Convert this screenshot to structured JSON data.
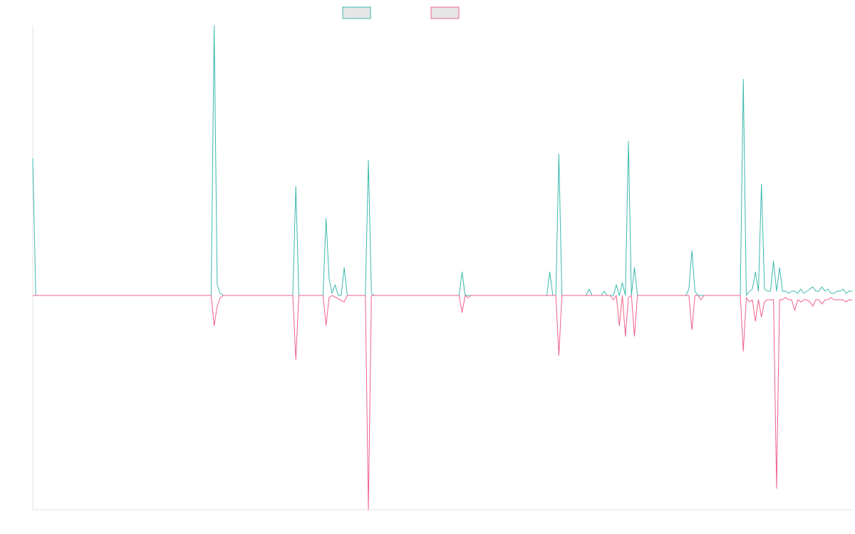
{
  "colors": {
    "series_a": "#3cb8ae",
    "series_b": "#f06088",
    "legend_fill": "#e6e6e6",
    "axis": "#e3e3e3",
    "background": "#ffffff"
  },
  "chart_data": {
    "type": "line",
    "title": "",
    "xlabel": "",
    "ylabel": "",
    "grid": false,
    "legend": "top-center",
    "x_count": 271,
    "ylim": [
      -1.0,
      1.26
    ],
    "series": [
      {
        "color": "#3cb8ae",
        "points": [
          [
            0,
            0.64
          ],
          [
            1,
            0
          ],
          [
            3,
            0
          ],
          [
            59,
            0
          ],
          [
            60,
            1.26
          ],
          [
            61,
            0.05
          ],
          [
            62,
            0.01
          ],
          [
            63,
            0
          ],
          [
            86,
            0
          ],
          [
            87,
            0.51
          ],
          [
            88,
            0
          ],
          [
            96,
            0
          ],
          [
            97,
            0.36
          ],
          [
            98,
            0.08
          ],
          [
            99,
            0.01
          ],
          [
            100,
            0.05
          ],
          [
            101,
            0
          ],
          [
            102,
            0
          ],
          [
            103,
            0.13
          ],
          [
            104,
            0
          ],
          [
            110,
            0
          ],
          [
            111,
            0.63
          ],
          [
            112,
            0.01
          ],
          [
            113,
            0
          ],
          [
            141,
            0
          ],
          [
            142,
            0.11
          ],
          [
            143,
            0
          ],
          [
            144,
            0
          ],
          [
            170,
            0
          ],
          [
            171,
            0.11
          ],
          [
            172,
            0
          ],
          [
            173,
            0
          ],
          [
            174,
            0.66
          ],
          [
            175,
            0
          ],
          [
            176,
            0
          ],
          [
            183,
            0
          ],
          [
            184,
            0.03
          ],
          [
            185,
            0
          ],
          [
            188,
            0
          ],
          [
            189,
            0.02
          ],
          [
            190,
            0
          ],
          [
            192,
            0
          ],
          [
            193,
            0.05
          ],
          [
            194,
            0
          ],
          [
            195,
            0.06
          ],
          [
            196,
            0
          ],
          [
            197,
            0.72
          ],
          [
            198,
            0
          ],
          [
            199,
            0.13
          ],
          [
            200,
            0
          ],
          [
            216,
            0
          ],
          [
            217,
            0.03
          ],
          [
            218,
            0.21
          ],
          [
            219,
            0.02
          ],
          [
            220,
            0
          ],
          [
            232,
            0
          ],
          [
            233,
            0
          ],
          [
            234,
            0
          ],
          [
            235,
            1.01
          ],
          [
            236,
            0
          ],
          [
            237,
            0.02
          ],
          [
            238,
            0.03
          ],
          [
            239,
            0.11
          ],
          [
            240,
            0.02
          ],
          [
            241,
            0.52
          ],
          [
            242,
            0.03
          ],
          [
            243,
            0.02
          ],
          [
            244,
            0.02
          ],
          [
            245,
            0.16
          ],
          [
            246,
            0.02
          ],
          [
            247,
            0.13
          ],
          [
            248,
            0.02
          ],
          [
            249,
            0.02
          ],
          [
            250,
            0.01
          ],
          [
            251,
            0.02
          ],
          [
            252,
            0.02
          ],
          [
            253,
            0.01
          ],
          [
            254,
            0.03
          ],
          [
            255,
            0.01
          ],
          [
            256,
            0.02
          ],
          [
            257,
            0.03
          ],
          [
            258,
            0.04
          ],
          [
            259,
            0.02
          ],
          [
            260,
            0.02
          ],
          [
            261,
            0.04
          ],
          [
            262,
            0.02
          ],
          [
            263,
            0.03
          ],
          [
            264,
            0.01
          ],
          [
            265,
            0.01
          ],
          [
            266,
            0.02
          ],
          [
            267,
            0.02
          ],
          [
            268,
            0.03
          ],
          [
            269,
            0.01
          ],
          [
            270,
            0.02
          ],
          [
            271,
            0.02
          ]
        ]
      },
      {
        "color": "#f06088",
        "points": [
          [
            0,
            0
          ],
          [
            3,
            0
          ],
          [
            59,
            0
          ],
          [
            60,
            -0.14
          ],
          [
            61,
            -0.05
          ],
          [
            62,
            -0.01
          ],
          [
            63,
            0
          ],
          [
            86,
            0
          ],
          [
            87,
            -0.3
          ],
          [
            88,
            0
          ],
          [
            96,
            0
          ],
          [
            97,
            -0.14
          ],
          [
            98,
            -0.01
          ],
          [
            99,
            0
          ],
          [
            103,
            -0.03
          ],
          [
            104,
            0
          ],
          [
            110,
            0
          ],
          [
            111,
            -1.0
          ],
          [
            112,
            0
          ],
          [
            141,
            0
          ],
          [
            142,
            -0.08
          ],
          [
            143,
            0
          ],
          [
            144,
            -0.01
          ],
          [
            145,
            0
          ],
          [
            173,
            0
          ],
          [
            174,
            -0.28
          ],
          [
            175,
            0
          ],
          [
            191,
            0
          ],
          [
            192,
            -0.02
          ],
          [
            193,
            0
          ],
          [
            194,
            -0.14
          ],
          [
            195,
            0
          ],
          [
            196,
            -0.19
          ],
          [
            197,
            -0.01
          ],
          [
            198,
            0
          ],
          [
            199,
            -0.19
          ],
          [
            200,
            0
          ],
          [
            217,
            0
          ],
          [
            218,
            -0.16
          ],
          [
            219,
            0
          ],
          [
            220,
            0
          ],
          [
            221,
            -0.02
          ],
          [
            222,
            0
          ],
          [
            234,
            0
          ],
          [
            235,
            -0.26
          ],
          [
            236,
            -0.01
          ],
          [
            237,
            -0.03
          ],
          [
            238,
            -0.02
          ],
          [
            239,
            -0.12
          ],
          [
            240,
            -0.02
          ],
          [
            241,
            -0.1
          ],
          [
            242,
            -0.03
          ],
          [
            243,
            -0.02
          ],
          [
            244,
            -0.02
          ],
          [
            245,
            -0.02
          ],
          [
            246,
            -0.9
          ],
          [
            247,
            -0.02
          ],
          [
            248,
            -0.02
          ],
          [
            249,
            -0.01
          ],
          [
            250,
            -0.02
          ],
          [
            251,
            -0.02
          ],
          [
            252,
            -0.07
          ],
          [
            253,
            -0.02
          ],
          [
            254,
            -0.03
          ],
          [
            255,
            -0.02
          ],
          [
            256,
            -0.02
          ],
          [
            257,
            -0.03
          ],
          [
            258,
            -0.05
          ],
          [
            259,
            -0.02
          ],
          [
            260,
            -0.02
          ],
          [
            261,
            -0.04
          ],
          [
            262,
            -0.02
          ],
          [
            263,
            -0.02
          ],
          [
            264,
            -0.01
          ],
          [
            265,
            -0.02
          ],
          [
            266,
            -0.02
          ],
          [
            267,
            -0.02
          ],
          [
            268,
            -0.02
          ],
          [
            269,
            -0.03
          ],
          [
            270,
            -0.02
          ],
          [
            271,
            -0.02
          ]
        ]
      }
    ]
  }
}
